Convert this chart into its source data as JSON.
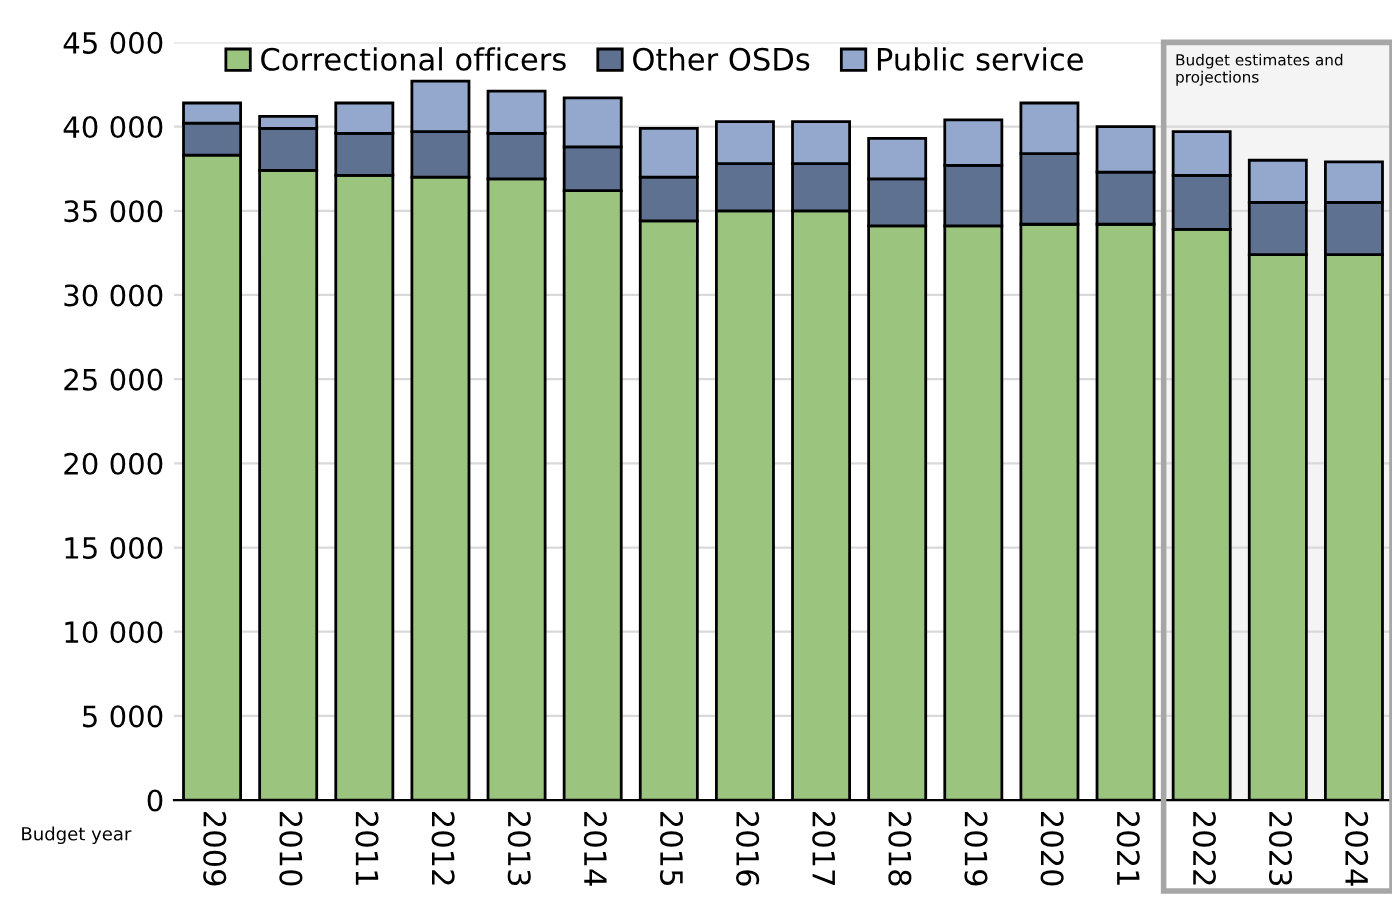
{
  "chart_data": {
    "type": "bar",
    "stacked": true,
    "xlabel": "Budget year",
    "categories": [
      "2009",
      "2010",
      "2011",
      "2012",
      "2013",
      "2014",
      "2015",
      "2016",
      "2017",
      "2018",
      "2019",
      "2020",
      "2021",
      "2022",
      "2023",
      "2024"
    ],
    "series": [
      {
        "name": "Correctional officers",
        "color": "#9bc47f",
        "values": [
          38300,
          37400,
          37100,
          37000,
          36900,
          36200,
          34400,
          35000,
          35000,
          34100,
          34100,
          34200,
          34200,
          33900,
          32400,
          32400
        ]
      },
      {
        "name": "Other OSDs",
        "color": "#5f7190",
        "values": [
          1900,
          2500,
          2500,
          2700,
          2700,
          2600,
          2600,
          2800,
          2800,
          2800,
          3600,
          4200,
          3100,
          3200,
          3100,
          3100
        ]
      },
      {
        "name": "Public service",
        "color": "#93a8cc",
        "values": [
          1200,
          700,
          1800,
          3000,
          2500,
          2900,
          2900,
          2500,
          2500,
          2400,
          2700,
          3000,
          2700,
          2600,
          2500,
          2400
        ]
      }
    ],
    "ylim": [
      0,
      45000
    ],
    "yticks": [
      0,
      {
        "value": 5000,
        "label": "5 000"
      },
      {
        "value": 10000,
        "label": "10 000"
      },
      {
        "value": 15000,
        "label": "15 000"
      },
      {
        "value": 20000,
        "label": "20 000"
      },
      {
        "value": 25000,
        "label": "25 000"
      },
      {
        "value": 30000,
        "label": "30 000"
      },
      {
        "value": 35000,
        "label": "35 000"
      },
      {
        "value": 40000,
        "label": "40 000"
      },
      {
        "value": 45000,
        "label": "45 000"
      }
    ],
    "grid": "y",
    "legend": "top",
    "bands": [
      {
        "axis": "x",
        "from": "2022",
        "to": "2024",
        "label": "Budget estimates and projections",
        "color": "#a6a6a6"
      }
    ]
  }
}
